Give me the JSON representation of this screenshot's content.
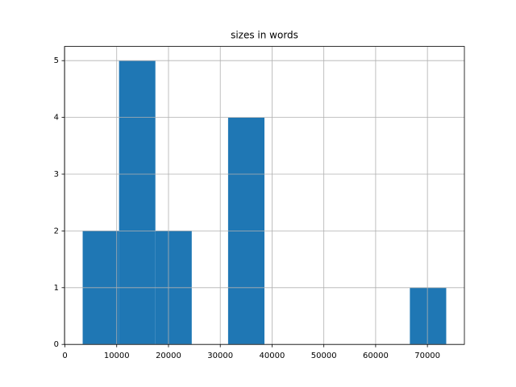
{
  "chart_data": {
    "type": "histogram",
    "title": "sizes in words",
    "bins": [
      3430,
      10450,
      17470,
      24490,
      31510,
      38530,
      45550,
      52570,
      59590,
      66610,
      73630
    ],
    "values": [
      2,
      5,
      2,
      0,
      4,
      0,
      0,
      0,
      0,
      1
    ],
    "color": "#1f77b4",
    "xlim": [
      -80,
      77140
    ],
    "xticks": [
      0,
      10000,
      20000,
      30000,
      40000,
      50000,
      60000,
      70000
    ],
    "ylim": [
      0,
      5.25
    ],
    "yticks": [
      0,
      1,
      2,
      3,
      4,
      5
    ],
    "grid": true
  }
}
